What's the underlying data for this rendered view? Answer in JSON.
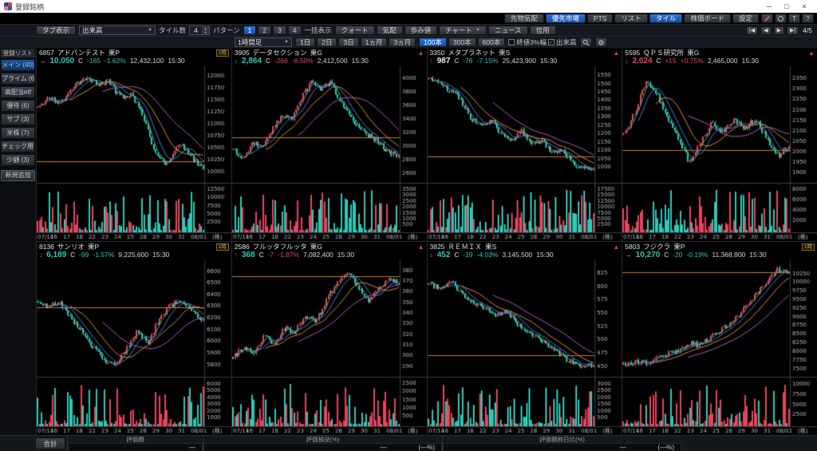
{
  "window": {
    "title": "登録銘柄",
    "minimize": "─",
    "maximize": "□",
    "close": "×"
  },
  "topbar": {
    "buttons": [
      {
        "label": "先物気配",
        "selected": false
      },
      {
        "label": "優先市場",
        "selected": true
      },
      {
        "label": "PTS",
        "selected": false
      },
      {
        "label": "リスト",
        "selected": false
      },
      {
        "label": "タイル",
        "selected": true
      },
      {
        "label": "株価ボード",
        "selected": false
      },
      {
        "label": "設定",
        "selected": false
      }
    ],
    "icon_buttons": [
      {
        "name": "pen-icon",
        "type": "pen"
      },
      {
        "name": "circle-icon",
        "type": "circle"
      },
      {
        "name": "text-icon",
        "type": "glyph",
        "glyph": "T"
      },
      {
        "name": "help-icon",
        "type": "glyph",
        "glyph": "?"
      }
    ]
  },
  "toolbar": {
    "tab_button": "タブ表示",
    "dropdown_value": "出来高",
    "tile_count_label": "タイル数",
    "tile_count_value": "4",
    "pattern_label": "パターン",
    "patterns": [
      {
        "label": "1",
        "selected": true
      },
      {
        "label": "2",
        "selected": false
      },
      {
        "label": "3",
        "selected": false
      },
      {
        "label": "4",
        "selected": false
      }
    ],
    "batch_label": "一括表示",
    "view_buttons": [
      {
        "label": "クォート"
      },
      {
        "label": "気配"
      },
      {
        "label": "歩み値"
      },
      {
        "label": "チャート",
        "dropdown": true
      },
      {
        "label": "ニュース"
      },
      {
        "label": "信用"
      }
    ],
    "pager": {
      "first": "|◀",
      "prev": "◀",
      "next": "▶",
      "last": "▶|",
      "page": "4/5"
    }
  },
  "chartbar": {
    "timeframe_value": "1時間足",
    "period_buttons": [
      {
        "label": "1日",
        "selected": false
      },
      {
        "label": "2日",
        "selected": false
      },
      {
        "label": "3日",
        "selected": false
      },
      {
        "label": "1ヵ月",
        "selected": false
      },
      {
        "label": "3ヵ月",
        "selected": false
      }
    ],
    "bar_buttons": [
      {
        "label": "100本",
        "selected": true
      },
      {
        "label": "300本",
        "selected": false
      },
      {
        "label": "600本",
        "selected": false
      }
    ],
    "checkboxes": [
      {
        "label": "終値3%幅",
        "checked": false
      },
      {
        "label": "出来高",
        "checked": true
      }
    ]
  },
  "sidebar": {
    "header": "登録リスト",
    "items": [
      {
        "label": "メイン (40)",
        "selected": true
      },
      {
        "label": "プライム (6)",
        "selected": false
      },
      {
        "label": "高配当etf",
        "selected": false
      },
      {
        "label": "優待 (6)",
        "selected": false
      },
      {
        "label": "サブ (3)",
        "selected": false
      },
      {
        "label": "米株 (7)",
        "selected": false
      },
      {
        "label": "チェック用 (",
        "selected": false
      },
      {
        "label": "少額 (3)",
        "selected": false
      }
    ],
    "add_button": "新規追加"
  },
  "icons": {
    "chevron_down": "▼",
    "spin_up": "▲",
    "spin_down": "▼",
    "check": "✓",
    "alert": "▲",
    "badge_text": "1時"
  },
  "colors": {
    "up": "#e8445c",
    "down": "#2fc8b8",
    "flat": "#c8cacc",
    "white": "#e8eaec",
    "accent": "#2268c8",
    "ma1": "#e8913a",
    "ma2": "#4f7fe8",
    "ma3": "#b35fd0",
    "ma4": "#3fae7a",
    "hline": "#c87a2e"
  },
  "chart_common": {
    "x_labels": [
      "07/14",
      "16",
      "17",
      "18",
      "22",
      "23",
      "24",
      "25",
      "28",
      "29",
      "30",
      "31",
      "08/01"
    ],
    "unit": "(株)"
  },
  "tiles": [
    {
      "code": "6857",
      "name": "アドバンテスト",
      "market": "東P",
      "badge": "1時",
      "alert": false,
      "arrow": "→",
      "arrow_color": "flat",
      "price": "10,050",
      "price_flag": "C",
      "price_color": "down",
      "change": "-165",
      "change_pct": "-1.62%",
      "change_color": "down",
      "volume": "12,432,100",
      "time": "15:30",
      "chart": {
        "seed": 11,
        "y_ticks": [
          12000,
          11750,
          11500,
          11250,
          11000,
          10750,
          10500,
          10250,
          10000
        ],
        "y_min": 9850,
        "y_max": 12120,
        "vol_ticks": [
          12500,
          10000,
          7500,
          5000,
          2500
        ],
        "vol_max": 14000,
        "hline": 10215,
        "waypoints": [
          11350,
          11550,
          11450,
          11800,
          11950,
          11820,
          11900,
          11550,
          11600,
          11100,
          10350,
          10150,
          10600,
          10300,
          10050
        ]
      }
    },
    {
      "code": "3905",
      "name": "データセクション",
      "market": "東G",
      "badge": null,
      "alert": true,
      "arrow": "↓",
      "arrow_color": "down",
      "price": "2,864",
      "price_flag": "C",
      "price_color": "down",
      "change": "-266",
      "change_pct": "-8.50%",
      "change_color": "up",
      "volume": "2,412,500",
      "time": "15:30",
      "chart": {
        "seed": 22,
        "y_ticks": [
          4000,
          3800,
          3600,
          3400,
          3200,
          3000,
          2800,
          2600
        ],
        "y_min": 2520,
        "y_max": 4120,
        "vol_ticks": [
          3500,
          3000,
          2500,
          2000,
          1500,
          1000,
          500
        ],
        "vol_max": 3900,
        "hline": 3130,
        "waypoints": [
          2950,
          2830,
          3050,
          3000,
          3250,
          3450,
          3400,
          3700,
          3950,
          3850,
          3950,
          3650,
          3450,
          3250,
          3150,
          3050,
          2900,
          2864
        ]
      }
    },
    {
      "code": "3350",
      "name": "メタプラネット",
      "market": "東S",
      "badge": null,
      "alert": true,
      "arrow": "↑",
      "arrow_color": "up",
      "price": "987",
      "price_flag": "C",
      "price_color": "white",
      "change": "-76",
      "change_pct": "-7.15%",
      "change_color": "down",
      "volume": "25,423,900",
      "time": "15:30",
      "chart": {
        "seed": 33,
        "y_ticks": [
          1550,
          1500,
          1450,
          1400,
          1350,
          1300,
          1250,
          1200,
          1150,
          1100,
          1050,
          1000
        ],
        "y_min": 930,
        "y_max": 1580,
        "vol_ticks": [
          17500,
          15000,
          12500,
          10000,
          7500,
          5000,
          2500
        ],
        "vol_max": 19500,
        "hline": 1063,
        "waypoints": [
          1530,
          1500,
          1460,
          1420,
          1300,
          1240,
          1290,
          1200,
          1160,
          1220,
          1130,
          1160,
          1080,
          1100,
          1020,
          990,
          987
        ]
      }
    },
    {
      "code": "5595",
      "name": "ＱＰＳ研究所",
      "market": "東G",
      "badge": null,
      "alert": true,
      "arrow": "↓",
      "arrow_color": "down",
      "price": "2,024",
      "price_flag": "C",
      "price_color": "up",
      "change": "+15",
      "change_pct": "+0.75%",
      "change_color": "up",
      "volume": "2,465,000",
      "time": "15:30",
      "chart": {
        "seed": 44,
        "y_ticks": [
          2350,
          2300,
          2250,
          2200,
          2150,
          2100,
          2050,
          2000,
          1950,
          1900
        ],
        "y_min": 1870,
        "y_max": 2390,
        "vol_ticks": [
          8000,
          6000,
          4000,
          2000
        ],
        "vol_max": 9000,
        "hline": 2009,
        "waypoints": [
          2080,
          2180,
          2330,
          2280,
          2170,
          2060,
          1950,
          2040,
          2140,
          2090,
          2150,
          2110,
          2160,
          2060,
          1980,
          2024
        ]
      }
    },
    {
      "code": "8136",
      "name": "サンリオ",
      "market": "東P",
      "badge": "1時",
      "alert": false,
      "arrow": "↓",
      "arrow_color": "down",
      "price": "6,189",
      "price_flag": "C",
      "price_color": "down",
      "change": "-99",
      "change_pct": "-1.57%",
      "change_color": "down",
      "volume": "9,225,600",
      "time": "15:30",
      "chart": {
        "seed": 55,
        "y_ticks": [
          6600,
          6500,
          6400,
          6300,
          6200,
          6100,
          6000,
          5900,
          5800
        ],
        "y_min": 5730,
        "y_max": 6660,
        "vol_ticks": [
          6000,
          5000,
          4000,
          3000,
          2000,
          1000
        ],
        "vol_max": 6800,
        "hline": 6288,
        "waypoints": [
          6340,
          6290,
          6340,
          6190,
          6090,
          5950,
          5840,
          5800,
          5930,
          6080,
          5990,
          6190,
          6310,
          6340,
          6250,
          6189
        ]
      }
    },
    {
      "code": "2586",
      "name": "フルッタフルッタ",
      "market": "東G",
      "badge": null,
      "alert": true,
      "arrow": "↑",
      "arrow_color": "up",
      "price": "368",
      "price_flag": "C",
      "price_color": "down",
      "change": "-7",
      "change_pct": "-1.87%",
      "change_color": "up",
      "volume": "7,082,400",
      "time": "15:30",
      "chart": {
        "seed": 66,
        "y_ticks": [
          380,
          370,
          360,
          350,
          340,
          330,
          320,
          310,
          300,
          290
        ],
        "y_min": 284,
        "y_max": 386,
        "vol_ticks": [
          2500,
          2000,
          1500,
          1000,
          500
        ],
        "vol_max": 2800,
        "hline": 375,
        "waypoints": [
          299,
          308,
          303,
          318,
          312,
          326,
          322,
          338,
          332,
          352,
          368,
          380,
          366,
          352,
          362,
          374,
          368
        ]
      }
    },
    {
      "code": "3825",
      "name": "ＲＥＭＩＸ",
      "market": "東S",
      "badge": null,
      "alert": true,
      "arrow": "↓",
      "arrow_color": "down",
      "price": "452",
      "price_flag": "C",
      "price_color": "down",
      "change": "-19",
      "change_pct": "-4.03%",
      "change_color": "down",
      "volume": "3,145,500",
      "time": "15:30",
      "chart": {
        "seed": 77,
        "y_ticks": [
          625,
          600,
          575,
          550,
          525,
          500,
          475,
          450
        ],
        "y_min": 438,
        "y_max": 642,
        "vol_ticks": [
          3000,
          2500,
          2000,
          1500,
          1000,
          500
        ],
        "vol_max": 3400,
        "hline": 471,
        "waypoints": [
          606,
          596,
          612,
          586,
          572,
          562,
          544,
          552,
          532,
          512,
          502,
          486,
          470,
          458,
          448,
          452
        ]
      }
    },
    {
      "code": "5803",
      "name": "フジクラ",
      "market": "東P",
      "badge": "1時",
      "alert": false,
      "arrow": "→",
      "arrow_color": "flat",
      "price": "10,270",
      "price_flag": "C",
      "price_color": "down",
      "change": "-20",
      "change_pct": "-0.19%",
      "change_color": "down",
      "volume": "11,368,800",
      "time": "15:30",
      "chart": {
        "seed": 88,
        "y_ticks": [
          10250,
          10000,
          9750,
          9500,
          9250,
          9000,
          8750,
          8500,
          8250,
          8000,
          7750,
          7500
        ],
        "y_min": 7380,
        "y_max": 10520,
        "vol_ticks": [
          10000,
          7500,
          5000,
          2500
        ],
        "vol_max": 11500,
        "hline": 10290,
        "waypoints": [
          7620,
          7700,
          7660,
          7820,
          7930,
          8060,
          8230,
          8180,
          8420,
          8650,
          8900,
          9250,
          9650,
          10050,
          10380,
          10270
        ]
      }
    }
  ],
  "footer": {
    "total_label": "合計",
    "groups": [
      {
        "header": "評価額",
        "values": [
          "—"
        ]
      },
      {
        "header": "評価損益(%)",
        "values": [
          "—",
          "(—%)"
        ]
      },
      {
        "header": "評価額前日比(%)",
        "values": [
          "—",
          "(—%)"
        ]
      }
    ]
  }
}
